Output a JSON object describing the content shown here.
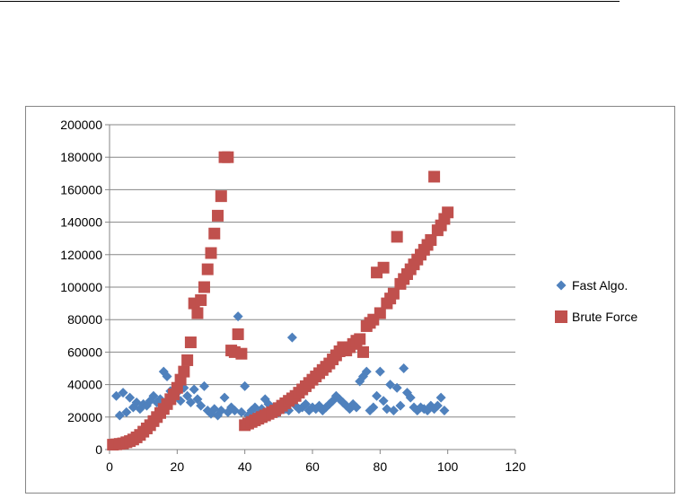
{
  "chart_data": {
    "type": "scatter",
    "title": "",
    "xlabel": "",
    "ylabel": "",
    "xlim": [
      0,
      120
    ],
    "ylim": [
      0,
      200000
    ],
    "x_ticks": [
      "0",
      "20",
      "40",
      "60",
      "80",
      "100",
      "120"
    ],
    "y_ticks": [
      "0",
      "20000",
      "40000",
      "60000",
      "80000",
      "100000",
      "120000",
      "140000",
      "160000",
      "180000",
      "200000"
    ],
    "grid": "horizontal",
    "legend_position": "right",
    "series": [
      {
        "name": "Fast Algo.",
        "color": "#4F81BD",
        "marker": "diamond",
        "points": [
          [
            2,
            33000
          ],
          [
            3,
            21000
          ],
          [
            4,
            35000
          ],
          [
            5,
            23000
          ],
          [
            6,
            32000
          ],
          [
            7,
            26000
          ],
          [
            8,
            29000
          ],
          [
            9,
            25000
          ],
          [
            10,
            28000
          ],
          [
            11,
            27000
          ],
          [
            12,
            30000
          ],
          [
            13,
            33000
          ],
          [
            14,
            29000
          ],
          [
            15,
            31000
          ],
          [
            16,
            48000
          ],
          [
            17,
            45000
          ],
          [
            18,
            36000
          ],
          [
            19,
            32000
          ],
          [
            20,
            35000
          ],
          [
            21,
            30000
          ],
          [
            22,
            38000
          ],
          [
            23,
            33000
          ],
          [
            24,
            29000
          ],
          [
            25,
            37000
          ],
          [
            26,
            31000
          ],
          [
            27,
            27000
          ],
          [
            28,
            39000
          ],
          [
            29,
            24000
          ],
          [
            30,
            22000
          ],
          [
            31,
            25000
          ],
          [
            32,
            21000
          ],
          [
            33,
            24000
          ],
          [
            34,
            32000
          ],
          [
            35,
            23000
          ],
          [
            36,
            26000
          ],
          [
            37,
            24000
          ],
          [
            38,
            82000
          ],
          [
            39,
            23000
          ],
          [
            40,
            39000
          ],
          [
            41,
            21000
          ],
          [
            42,
            24000
          ],
          [
            43,
            26000
          ],
          [
            44,
            22000
          ],
          [
            45,
            25000
          ],
          [
            46,
            31000
          ],
          [
            47,
            28000
          ],
          [
            48,
            24000
          ],
          [
            49,
            26000
          ],
          [
            50,
            23000
          ],
          [
            51,
            28000
          ],
          [
            52,
            25000
          ],
          [
            53,
            24000
          ],
          [
            54,
            69000
          ],
          [
            55,
            27000
          ],
          [
            56,
            25000
          ],
          [
            57,
            26000
          ],
          [
            58,
            28000
          ],
          [
            59,
            24000
          ],
          [
            60,
            26000
          ],
          [
            61,
            25000
          ],
          [
            62,
            27000
          ],
          [
            63,
            24000
          ],
          [
            64,
            26000
          ],
          [
            65,
            28000
          ],
          [
            66,
            30000
          ],
          [
            67,
            33000
          ],
          [
            68,
            31000
          ],
          [
            69,
            29000
          ],
          [
            70,
            27000
          ],
          [
            71,
            25000
          ],
          [
            72,
            28000
          ],
          [
            73,
            26000
          ],
          [
            74,
            42000
          ],
          [
            75,
            45000
          ],
          [
            76,
            48000
          ],
          [
            77,
            24000
          ],
          [
            78,
            26000
          ],
          [
            79,
            33000
          ],
          [
            80,
            48000
          ],
          [
            81,
            30000
          ],
          [
            82,
            25000
          ],
          [
            83,
            40000
          ],
          [
            84,
            24000
          ],
          [
            85,
            38000
          ],
          [
            86,
            27000
          ],
          [
            87,
            50000
          ],
          [
            88,
            35000
          ],
          [
            89,
            32000
          ],
          [
            90,
            26000
          ],
          [
            91,
            24000
          ],
          [
            92,
            26000
          ],
          [
            93,
            25000
          ],
          [
            94,
            24000
          ],
          [
            95,
            27000
          ],
          [
            96,
            25000
          ],
          [
            97,
            27000
          ],
          [
            98,
            32000
          ],
          [
            99,
            24000
          ]
        ]
      },
      {
        "name": "Brute Force",
        "color": "#C0504D",
        "marker": "square",
        "points": [
          [
            1,
            3000
          ],
          [
            2,
            3200
          ],
          [
            3,
            3500
          ],
          [
            4,
            3800
          ],
          [
            5,
            4500
          ],
          [
            6,
            5200
          ],
          [
            7,
            6200
          ],
          [
            8,
            7500
          ],
          [
            9,
            9000
          ],
          [
            10,
            11000
          ],
          [
            11,
            13000
          ],
          [
            12,
            15000
          ],
          [
            13,
            17500
          ],
          [
            14,
            20000
          ],
          [
            15,
            22500
          ],
          [
            16,
            25000
          ],
          [
            17,
            28000
          ],
          [
            18,
            31000
          ],
          [
            19,
            34000
          ],
          [
            20,
            38000
          ],
          [
            21,
            43000
          ],
          [
            22,
            48000
          ],
          [
            23,
            55000
          ],
          [
            24,
            66000
          ],
          [
            25,
            90000
          ],
          [
            26,
            84000
          ],
          [
            27,
            92000
          ],
          [
            28,
            100000
          ],
          [
            29,
            111000
          ],
          [
            30,
            121000
          ],
          [
            31,
            133000
          ],
          [
            32,
            144000
          ],
          [
            33,
            156000
          ],
          [
            34,
            180000
          ],
          [
            35,
            180000
          ],
          [
            36,
            61000
          ],
          [
            37,
            60000
          ],
          [
            38,
            71000
          ],
          [
            39,
            59000
          ],
          [
            40,
            15000
          ],
          [
            41,
            16000
          ],
          [
            42,
            17000
          ],
          [
            43,
            18000
          ],
          [
            44,
            19000
          ],
          [
            45,
            20000
          ],
          [
            46,
            21000
          ],
          [
            47,
            22000
          ],
          [
            48,
            23000
          ],
          [
            49,
            24000
          ],
          [
            50,
            25500
          ],
          [
            51,
            27000
          ],
          [
            52,
            28500
          ],
          [
            53,
            30000
          ],
          [
            54,
            31500
          ],
          [
            55,
            33000
          ],
          [
            56,
            35000
          ],
          [
            57,
            37000
          ],
          [
            58,
            39000
          ],
          [
            59,
            41000
          ],
          [
            60,
            43000
          ],
          [
            61,
            45000
          ],
          [
            62,
            47000
          ],
          [
            63,
            49000
          ],
          [
            64,
            51000
          ],
          [
            65,
            53000
          ],
          [
            66,
            55500
          ],
          [
            67,
            58000
          ],
          [
            68,
            60500
          ],
          [
            69,
            63000
          ],
          [
            70,
            61000
          ],
          [
            71,
            63000
          ],
          [
            72,
            65000
          ],
          [
            73,
            67000
          ],
          [
            74,
            68000
          ],
          [
            75,
            60000
          ],
          [
            76,
            76000
          ],
          [
            77,
            78000
          ],
          [
            78,
            80000
          ],
          [
            79,
            109000
          ],
          [
            80,
            84000
          ],
          [
            81,
            112000
          ],
          [
            82,
            90000
          ],
          [
            83,
            93000
          ],
          [
            84,
            96000
          ],
          [
            85,
            131000
          ],
          [
            86,
            102000
          ],
          [
            87,
            105000
          ],
          [
            88,
            108000
          ],
          [
            89,
            111000
          ],
          [
            90,
            114000
          ],
          [
            91,
            117000
          ],
          [
            92,
            120000
          ],
          [
            93,
            123000
          ],
          [
            94,
            126000
          ],
          [
            95,
            129000
          ],
          [
            96,
            168000
          ],
          [
            97,
            135000
          ],
          [
            98,
            138000
          ],
          [
            99,
            142000
          ],
          [
            100,
            146000
          ]
        ]
      }
    ]
  }
}
